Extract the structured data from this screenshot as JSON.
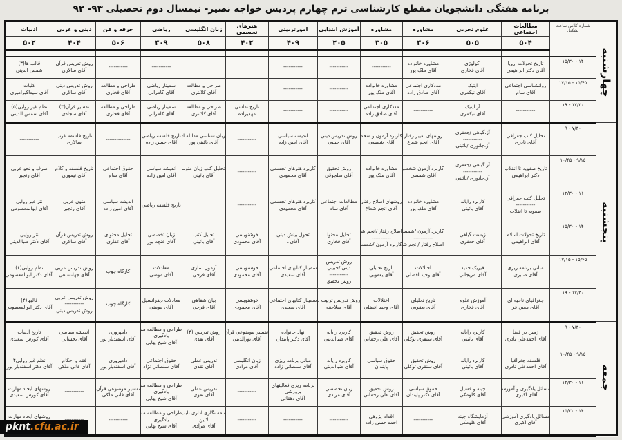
{
  "title": "برنامه هفتگی دانشجویان مقطع کارشناسی ترم چهارم پردیس خواجه نصیر- نیمسال دوم تحصیلی ۹۳- ۹۲",
  "watermark": {
    "prefix": "pknt",
    "suffix": ".cfu.ac.ir"
  },
  "table": {
    "corner_header": "شماره کلاس ساعت تشکیل",
    "columns": [
      {
        "name": "مطالعات اجتماعی",
        "room": "۵۰۴"
      },
      {
        "name": "علوم تجربی",
        "room": "۵۰۵"
      },
      {
        "name": "مشاوره",
        "room": "۳۰۶"
      },
      {
        "name": "مشاوره",
        "room": "۳۰۵"
      },
      {
        "name": "آموزش ابتدایی",
        "room": "۲۰۵"
      },
      {
        "name": "امورتربیتی",
        "room": "۴۰۹"
      },
      {
        "name": "هنرهای تجسمی",
        "room": "۴۰۲"
      },
      {
        "name": "زبان انگلیسی",
        "room": "۵۰۸"
      },
      {
        "name": "ریاضی",
        "room": "۳۰۹"
      },
      {
        "name": "حرفه و فن",
        "room": "۵۰۶"
      },
      {
        "name": "دینی و عربی",
        "room": "۴۰۴"
      },
      {
        "name": "ادبیات",
        "room": "۵۰۲"
      }
    ],
    "days": [
      {
        "label": "چهارشنبه",
        "rows": [
          {
            "time": "۱۴ - ۱۵/۳۰",
            "cells": [
              [
                "تاریخ تحولات اروپا",
                "آقای دکتر ابراهیمی"
              ],
              [
                "اکولوژی",
                "آقای فخاری"
              ],
              [
                "مشاوره خانواده",
                "آقای ملک پور"
              ],
              [
                "-----------"
              ],
              [
                "-----------"
              ],
              [
                "-----------"
              ],
              [],
              [],
              [
                "-----------"
              ],
              [
                "-----------"
              ],
              [
                "روش تدریس قرآن",
                "آقای سالاری"
              ],
              [
                "قالب ها(۳)",
                "شمس الدینی"
              ]
            ]
          },
          {
            "time": "۱۵/۴۵ - ۱۷/۱۵",
            "cells": [
              [
                "روانشناسی اجتماعی",
                "آقای سام"
              ],
              [
                "اپتیک",
                "آقای نیکمری"
              ],
              [
                "مددکاری اجتماعی",
                "آقای صادق زاده"
              ],
              [
                "مشاوره خانواده",
                "آقای ملک پور"
              ],
              [
                "-----------"
              ],
              [
                "-----------"
              ],
              [],
              [
                "طراحی و مطالعه",
                "آقای کلانتری"
              ],
              [
                "سمینار ریاضی",
                "آقای کامرانی"
              ],
              [
                "طراحی و مطالعه",
                "آقای فخاری"
              ],
              [
                "روش تدریس دینی",
                "آقای سالاری"
              ],
              [
                "کلیات",
                "آقای سیداکبرامیری"
              ]
            ]
          },
          {
            "time": "۱۷/۳۰ - ۱۹",
            "cells": [
              [
                "-----------"
              ],
              [
                "آز.اپتیک",
                "آقای نیکمری"
              ],
              [
                "-----------"
              ],
              [
                "مددکاری اجتماعی",
                "آقای صادق زاده"
              ],
              [
                "-----------"
              ],
              [
                "-----------"
              ],
              [
                "تاریخ نقاشی",
                "مهدیزاده"
              ],
              [
                "طراحی و مطالعه",
                "آقای کلانتری"
              ],
              [
                "سمینار ریاضی",
                "آقای کامرانی"
              ],
              [
                "طراحی و مطالعه",
                "آقای فخاری"
              ],
              [
                "تفسیر قرآن(۳)",
                "آقای سجادی"
              ],
              [
                "نظم غیر روایی(۵)",
                "آقای شمس الدینی"
              ]
            ]
          }
        ]
      },
      {
        "label": "پنجشنبه",
        "rows": [
          {
            "time": "۷/۳۰ - ۹",
            "cells": [
              [
                "تحلیل کتب جغرافی",
                "آقای نادری"
              ],
              [
                "آز.گیاهی /جعفری",
                "-----------",
                "آز.جانوری /بائینی"
              ],
              [
                "روشهای تغییر رفتار",
                "آقای انجم شعاع"
              ],
              [
                "کاربرد آزمون و شخصیت",
                "آقای شمسی"
              ],
              [
                "روش تدریس دینی",
                "آقای حبیبی"
              ],
              [
                "اندیشه سیاسی",
                "آقای امین زاده"
              ],
              [
                "-----------"
              ],
              [
                "زبان شناسی مقابله ای",
                "آقای بائینی پور"
              ],
              [
                "تاریخ فلسفه ریاضی",
                "آقای حسن زاده"
              ],
              [
                "--------------"
              ],
              [
                "تاریخ فلسفه غرب",
                "سالاری"
              ],
              [
                "-----------"
              ]
            ]
          },
          {
            "time": "۹/۱۵ - ۱۰/۴۵",
            "cells": [
              [
                "تاریخ صفویه تا انقلاب",
                "دکتر ابراهیمی"
              ],
              [
                "آز.گیاهی /جعفری",
                "-----------",
                "آز.جانوری /بائینی"
              ],
              [
                "کاربرد آزمون شخصیت",
                "آقای شمسی"
              ],
              [
                "مشاوره خانواده",
                "آقای ملک پور"
              ],
              [
                "روش تحقیق",
                "آقای سلجوقی"
              ],
              [
                "کاربرد هنرهای تجسمی",
                "آقای محمودی"
              ],
              [
                "-----------"
              ],
              [
                "تحلیل کتب زبان متوسطه",
                "آقای بائینی"
              ],
              [
                "اندیشه سیاسی",
                "آقای امین زاده"
              ],
              [
                "حقوق اجتماعی",
                "آقای سام"
              ],
              [
                "تاریخ فلسفه و کلام",
                "آقای تیموری"
              ],
              [
                "صرف و نحو عربی",
                "آقای رنجبر"
              ]
            ]
          },
          {
            "time": "۱۱ - ۱۲/۳۰",
            "cells": [
              [
                "تحلیل کتب جغرافی",
                "-----------",
                "صفویه تا انقلاب"
              ],
              [
                "کاربرد رایانه",
                "آقای بائینی"
              ],
              [
                "مشاوره خانواده",
                "آقای ملک پور"
              ],
              [
                "روشهای اصلاح رفتار",
                "آقای انجم شعاع"
              ],
              [
                "مطالعات اجتماعی",
                "آقای سام"
              ],
              [
                "کاربرد هنرهای تجسمی",
                "آقای محمودی"
              ],
              [
                "-----------"
              ],
              [],
              [
                "تاریخ فلسفه ریاضی"
              ],
              [
                "اندیشه سیاسی",
                "آقای امین زاده"
              ],
              [
                "متون عربی",
                "آقای رنجبر"
              ],
              [
                "نثر غیر روایی",
                "آقای ابوالمعصومی"
              ]
            ]
          },
          {
            "time": "۱۴ - ۱۵/۳۰",
            "cells": [
              [
                "تاریخ تحولات اسلام",
                "آقای ابراهیمی"
              ],
              [
                "زیست گیاهی",
                "آقای جعفری"
              ],
              [
                "کاربرد آزمون /شمسی",
                "-----------",
                "اصلاح رفتار /انجم شعاع"
              ],
              [
                "اصلاح رفتار /انجم شعاع",
                "-----------",
                "کاربرد آزمون /شمسی"
              ],
              [
                "تحلیل محتوا",
                "آقای فخاری"
              ],
              [
                "تحول بینش دینی",
                "آقای ـ"
              ],
              [
                "خوشنویسی",
                "آقای محمودی"
              ],
              [
                "تحلیل کتب",
                "آقای بائینی"
              ],
              [
                "زبان تخصصی",
                "آقای غنچه پور"
              ],
              [
                "تحلیل محتوای",
                "آقای غفاری"
              ],
              [
                "روش تدریس قرآن",
                "آقای سالاری"
              ],
              [
                "نثر روایی",
                "آقای دکتر ضیاالدینی"
              ]
            ]
          },
          {
            "time": "۱۵/۴۵ - ۱۷/۱۵",
            "cells": [
              [
                "مبانی برنامه ریزی",
                "آقای صابری"
              ],
              [
                "فیزیک جدید",
                "آقای مریجانی"
              ],
              [
                "اختلالات",
                "آقای وحید افضلی"
              ],
              [
                "تاریخ تحلیلی",
                "آقای یعقوبی"
              ],
              [
                "روش تدریس",
                "دینی /حبیبی",
                "-----------",
                "روش تحقیق"
              ],
              [
                "سمینار کتابهای اجتماعی",
                "آقای سعیدی"
              ],
              [
                "خوشنویسی",
                "آقای محمودی"
              ],
              [
                "آزمون سازی",
                "آقای فرخی"
              ],
              [
                "معادلات",
                "آقای مومنی"
              ],
              [
                "کارگاه چوب"
              ],
              [
                "روش تدریس عربی",
                "آقای جهانشاهی"
              ],
              [
                "نظم روایی(۶)",
                "آقای دکتر ابوالمعصومی"
              ]
            ]
          },
          {
            "time": "۱۷/۳۰ - ۱۹",
            "cells": [
              [
                "جغرافیای ناحیه ای",
                "آقای معین فر"
              ],
              [
                "آموزش علوم",
                "آقای فخاری"
              ],
              [
                "تاریخ تحلیلی",
                "آقای یعقوبی"
              ],
              [
                "اختلالات",
                "آقای وحید افضلی"
              ],
              [
                "روش تدریس تربیت بدنی",
                "آقای سلاجقه"
              ],
              [
                "سمینار کتابهای اجتماعی",
                "آقای سعیدی"
              ],
              [
                "خوشنویسی",
                "آقای محمودی"
              ],
              [
                "بیان شفاهی",
                "آقای فرخی"
              ],
              [
                "معادلات دیفرانسیل",
                "آقای مومنی"
              ],
              [
                "کارگاه چوب"
              ],
              [
                "روش تدریس عربی",
                "-----------",
                "روش تدریس دینی"
              ],
              [
                "قالبها(۴)",
                "آقای دکتر ابوالمعصومی"
              ]
            ]
          }
        ]
      },
      {
        "label": "جمعه",
        "rows": [
          {
            "time": "۷/۳۰ - ۹",
            "cells": [
              [
                "زمین در فضا",
                "آقای احمدعلی نادری"
              ],
              [
                "کاربرد رایانه",
                "آقای بائینی"
              ],
              [
                "روش تحقیق",
                "آقای سنقری توکلی"
              ],
              [
                "روش تحقیق",
                "آقای علی رحمانی"
              ],
              [
                "کاربرد رایانه",
                "آقای ضیاالدینی"
              ],
              [
                "نهاد خانواده",
                "آقای دکتر پایندان"
              ],
              [
                "تفسیر موضوعی قرآن",
                "آقای نورالدینی"
              ],
              [
                "روش تدریس (۴)",
                "آقای نقدی"
              ],
              [
                "طراحی و مطالعه مسائل",
                "یادگیری",
                "آقای شیخ بهایی"
              ],
              [
                "دامپروری",
                "آقای اسفندیار پور"
              ],
              [
                "اندیشه سیاسی",
                "آقای بخشایی"
              ],
              [
                "تاریخ ادبیات",
                "آقای کورش سعیدی"
              ]
            ]
          },
          {
            "time": "۹/۱۵ - ۱۰/۴۵",
            "cells": [
              [
                "فلسفه جغرافیا",
                "آقای احمدعلی نادری"
              ],
              [
                "کاربرد رایانه",
                "آقای بائینی"
              ],
              [
                "روش تحقیق",
                "آقای سنقری توکلی"
              ],
              [
                "حقوق سیاسی",
                "پایندان"
              ],
              [
                "کاربرد رایانه",
                "آقای ضیاالدینی"
              ],
              [
                "مبانی برنامه ریزی",
                "آقای سلطانی زاده"
              ],
              [
                "زبان انگلیسی",
                "آقای مرادی"
              ],
              [
                "تدریس عملی",
                "آقای نقدی"
              ],
              [
                "حقوق اجتماعی",
                "آقای سلطانی نژاد"
              ],
              [
                "دامپروری",
                "آقای اسفندیار پور"
              ],
              [
                "فقه و احکام",
                "آقای فانی ملکی"
              ],
              [
                "نظم غیر روایی۴",
                "آقای دکتر اسفندیار پور"
              ]
            ]
          },
          {
            "time": "۱۱ - ۱۲/۳۰",
            "cells": [
              [
                "مسائل یادگیری و آموزشی",
                "آقای اکبری"
              ],
              [
                "چینه و فسیل",
                "آقای کلومکی"
              ],
              [
                "حقوق سیاسی",
                "آقای دکتر پایندان"
              ],
              [
                "روش تحقیق",
                "آقای علی رحمانی"
              ],
              [
                "زبان تخصصی",
                "آقای مرادی"
              ],
              [
                "برنامه ریزی فعالیتهای",
                "پرورشی",
                "آقای دهقانی"
              ],
              [
                "-----------"
              ],
              [
                "تدریس عملی",
                "آقای نقوی"
              ],
              [
                "طراحی و مطالعه مسائل",
                "یادگیری",
                "آقای شیخ بهایی"
              ],
              [
                "تفسیر موضوعی قرآن",
                "آقای فانی ملکی"
              ],
              [
                "-----------"
              ],
              [
                "روشهای ایجاد مهارت",
                "آقای کورش سعیدی"
              ]
            ]
          },
          {
            "time": "۱۴ - ۱۵/۳۰",
            "cells": [
              [
                "مسائل یادگیری آموزشی",
                "آقای اکبری"
              ],
              [
                "آزمایشگاه چینه",
                "آقای کلومکی"
              ],
              [
                "-----------"
              ],
              [
                "اقدام پژوهی",
                "احمد حسن زاده"
              ],
              [
                "-----------"
              ],
              [
                "-----------"
              ],
              [
                "-----------"
              ],
              [
                "نامه نگاری اداری نایب",
                "لاتین",
                "آقای مرادی"
              ],
              [
                "طراحی و مطالعه مسائل",
                "یادگیری",
                "آقای شیخ بهایی"
              ],
              [
                "-----------"
              ],
              [
                "-----------"
              ],
              [
                "روشهای ایجاد مهارت",
                "آقای کورش سعیدی"
              ]
            ]
          }
        ]
      }
    ]
  }
}
